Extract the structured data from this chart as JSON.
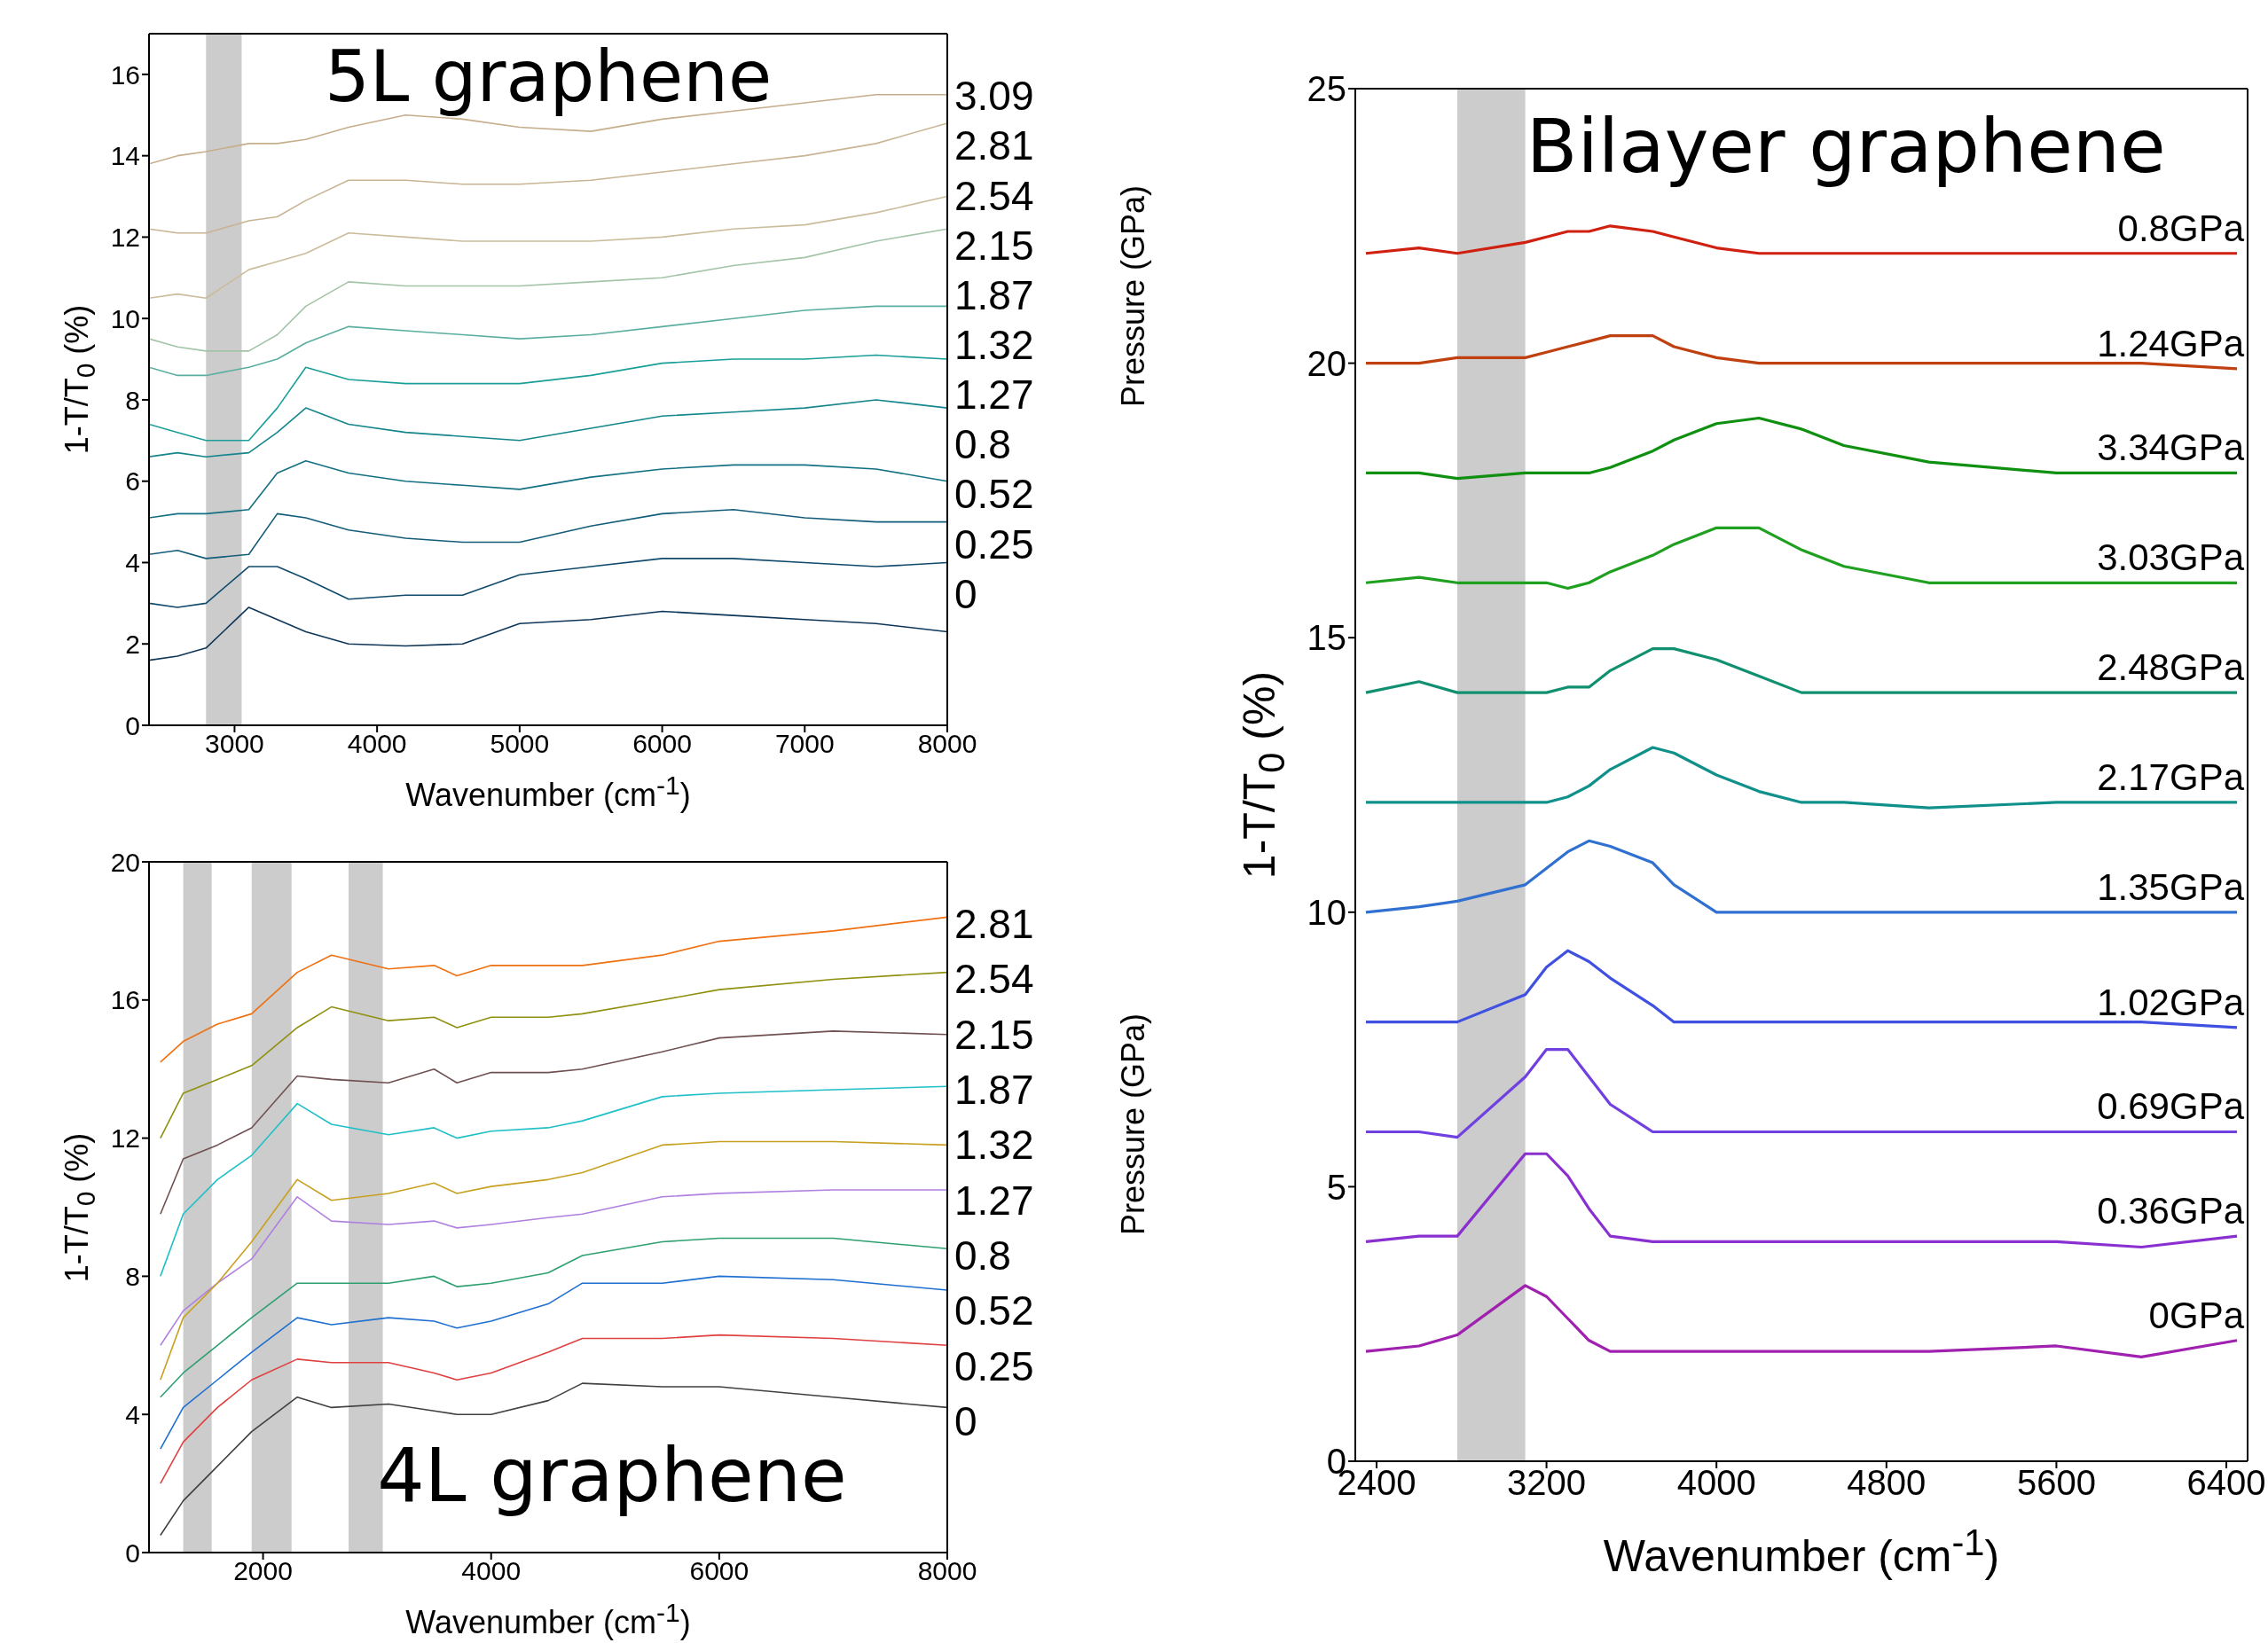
{
  "chart_data": [
    {
      "type": "line",
      "title": "5L graphene",
      "xlabel": "Wavenumber (cm$^{-1}$)",
      "ylabel": "1-T/T$_{0}$ (%)",
      "y2label": "Pressure (GPa)",
      "x": [
        2400,
        2600,
        2800,
        3100,
        3300,
        3500,
        3800,
        4200,
        4600,
        5000,
        5500,
        6000,
        6500,
        7000,
        7500,
        8000
      ],
      "xlim": [
        2400,
        8000
      ],
      "xticks": [
        3000,
        4000,
        5000,
        6000,
        7000,
        8000
      ],
      "ylim": [
        0,
        17
      ],
      "yticks": [
        0,
        2,
        4,
        6,
        8,
        10,
        12,
        14,
        16
      ],
      "grid": false,
      "marker": "none",
      "line_style": "solid",
      "bands": [
        {
          "axis": "x",
          "from": 2800,
          "to": 3050,
          "color": "#cccccc"
        }
      ],
      "series": [
        {
          "name": "0",
          "color": "#0d3658",
          "values": [
            1.6,
            1.7,
            1.9,
            2.9,
            2.6,
            2.3,
            2.0,
            1.95,
            2.0,
            2.5,
            2.6,
            2.8,
            2.7,
            2.6,
            2.5,
            2.3
          ]
        },
        {
          "name": "0.25",
          "color": "#0f4a6c",
          "values": [
            3.0,
            2.9,
            3.0,
            3.9,
            3.9,
            3.6,
            3.1,
            3.2,
            3.2,
            3.7,
            3.9,
            4.1,
            4.1,
            4.0,
            3.9,
            4.0
          ]
        },
        {
          "name": "0.52",
          "color": "#135c7a",
          "values": [
            4.2,
            4.3,
            4.1,
            4.2,
            5.2,
            5.1,
            4.8,
            4.6,
            4.5,
            4.5,
            4.9,
            5.2,
            5.3,
            5.1,
            5.0,
            5.0
          ]
        },
        {
          "name": "0.8",
          "color": "#137083",
          "values": [
            5.1,
            5.2,
            5.2,
            5.3,
            6.2,
            6.5,
            6.2,
            6.0,
            5.9,
            5.8,
            6.1,
            6.3,
            6.4,
            6.4,
            6.3,
            6.0
          ]
        },
        {
          "name": "1.27",
          "color": "#15868c",
          "values": [
            6.6,
            6.7,
            6.6,
            6.7,
            7.2,
            7.8,
            7.4,
            7.2,
            7.1,
            7.0,
            7.3,
            7.6,
            7.7,
            7.8,
            8.0,
            7.8
          ]
        },
        {
          "name": "1.32",
          "color": "#1a9e98",
          "values": [
            7.4,
            7.2,
            7.0,
            7.0,
            7.8,
            8.8,
            8.5,
            8.4,
            8.4,
            8.4,
            8.6,
            8.9,
            9.0,
            9.0,
            9.1,
            9.0
          ]
        },
        {
          "name": "1.87",
          "color": "#5aaea0",
          "values": [
            8.8,
            8.6,
            8.6,
            8.8,
            9.0,
            9.4,
            9.8,
            9.7,
            9.6,
            9.5,
            9.6,
            9.8,
            10.0,
            10.2,
            10.3,
            10.3
          ]
        },
        {
          "name": "2.15",
          "color": "#a3c4a8",
          "values": [
            9.5,
            9.3,
            9.2,
            9.2,
            9.6,
            10.3,
            10.9,
            10.8,
            10.8,
            10.8,
            10.9,
            11.0,
            11.3,
            11.5,
            11.9,
            12.2
          ]
        },
        {
          "name": "2.54",
          "color": "#cbbc9c",
          "values": [
            10.5,
            10.6,
            10.5,
            11.2,
            11.4,
            11.6,
            12.1,
            12.0,
            11.9,
            11.9,
            11.9,
            12.0,
            12.2,
            12.3,
            12.6,
            13.0
          ]
        },
        {
          "name": "2.81",
          "color": "#c9b494",
          "values": [
            12.2,
            12.1,
            12.1,
            12.4,
            12.5,
            12.9,
            13.4,
            13.4,
            13.3,
            13.3,
            13.4,
            13.6,
            13.8,
            14.0,
            14.3,
            14.8
          ]
        },
        {
          "name": "3.09",
          "color": "#c6ae8c",
          "values": [
            13.8,
            14.0,
            14.1,
            14.3,
            14.3,
            14.4,
            14.7,
            15.0,
            14.9,
            14.7,
            14.6,
            14.9,
            15.1,
            15.3,
            15.5,
            15.5
          ]
        }
      ]
    },
    {
      "type": "line",
      "title": "4L graphene",
      "xlabel": "Wavenumber (cm$^{-1}$)",
      "ylabel": "1-T/T$_{0}$ (%)",
      "y2label": "Pressure (GPa)",
      "x": [
        1100,
        1300,
        1600,
        1900,
        2300,
        2600,
        3100,
        3500,
        3700,
        4000,
        4500,
        4800,
        5500,
        6000,
        7000,
        8000
      ],
      "xlim": [
        1000,
        8000
      ],
      "xticks": [
        2000,
        4000,
        6000,
        8000
      ],
      "ylim": [
        0,
        20
      ],
      "yticks": [
        0,
        4,
        8,
        12,
        16,
        20
      ],
      "grid": false,
      "marker": "none",
      "line_style": "solid",
      "bands": [
        {
          "axis": "x",
          "from": 1300,
          "to": 1550,
          "color": "#cccccc"
        },
        {
          "axis": "x",
          "from": 1900,
          "to": 2250,
          "color": "#cccccc"
        },
        {
          "axis": "x",
          "from": 2750,
          "to": 3050,
          "color": "#cccccc"
        }
      ],
      "series": [
        {
          "name": "0",
          "color": "#404040",
          "values": [
            0.5,
            1.5,
            2.5,
            3.5,
            4.5,
            4.2,
            4.3,
            4.1,
            4.0,
            4.0,
            4.4,
            4.9,
            4.8,
            4.8,
            4.5,
            4.2
          ]
        },
        {
          "name": "0.25",
          "color": "#e04040",
          "values": [
            2.0,
            3.2,
            4.2,
            5.0,
            5.6,
            5.5,
            5.5,
            5.2,
            5.0,
            5.2,
            5.8,
            6.2,
            6.2,
            6.3,
            6.2,
            6.0
          ]
        },
        {
          "name": "0.52",
          "color": "#1f6fd0",
          "values": [
            3.0,
            4.2,
            5.0,
            5.8,
            6.8,
            6.6,
            6.8,
            6.7,
            6.5,
            6.7,
            7.2,
            7.8,
            7.8,
            8.0,
            7.9,
            7.6
          ]
        },
        {
          "name": "0.8",
          "color": "#2ea070",
          "values": [
            4.5,
            5.2,
            6.0,
            6.8,
            7.8,
            7.8,
            7.8,
            8.0,
            7.7,
            7.8,
            8.1,
            8.6,
            9.0,
            9.1,
            9.1,
            8.8
          ]
        },
        {
          "name": "1.27",
          "color": "#b080e0",
          "values": [
            6.0,
            7.0,
            7.8,
            8.5,
            10.3,
            9.6,
            9.5,
            9.6,
            9.4,
            9.5,
            9.7,
            9.8,
            10.3,
            10.4,
            10.5,
            10.5
          ]
        },
        {
          "name": "1.32",
          "color": "#c8a020",
          "values": [
            5.0,
            6.8,
            7.8,
            9.0,
            10.8,
            10.2,
            10.4,
            10.7,
            10.4,
            10.6,
            10.8,
            11.0,
            11.8,
            11.9,
            11.9,
            11.8
          ]
        },
        {
          "name": "1.87",
          "color": "#20c0c8",
          "values": [
            8.0,
            9.8,
            10.8,
            11.5,
            13.0,
            12.4,
            12.1,
            12.3,
            12.0,
            12.2,
            12.3,
            12.5,
            13.2,
            13.3,
            13.4,
            13.5
          ]
        },
        {
          "name": "2.15",
          "color": "#705050",
          "values": [
            9.8,
            11.4,
            11.8,
            12.3,
            13.8,
            13.7,
            13.6,
            14.0,
            13.6,
            13.9,
            13.9,
            14.0,
            14.5,
            14.9,
            15.1,
            15.0
          ]
        },
        {
          "name": "2.54",
          "color": "#909010",
          "values": [
            12.0,
            13.3,
            13.7,
            14.1,
            15.2,
            15.8,
            15.4,
            15.5,
            15.2,
            15.5,
            15.5,
            15.6,
            16.0,
            16.3,
            16.6,
            16.8
          ]
        },
        {
          "name": "2.81",
          "color": "#f07010",
          "values": [
            14.2,
            14.8,
            15.3,
            15.6,
            16.8,
            17.3,
            16.9,
            17.0,
            16.7,
            17.0,
            17.0,
            17.0,
            17.3,
            17.7,
            18.0,
            18.4
          ]
        }
      ]
    },
    {
      "type": "line",
      "title": "Bilayer graphene",
      "xlabel": "Wavenumber (cm$^{-1}$)",
      "ylabel": "1-T/T$_{0}$ (%)",
      "x": [
        2350,
        2600,
        2780,
        3100,
        3200,
        3300,
        3400,
        3500,
        3700,
        3800,
        4000,
        4200,
        4400,
        4600,
        5000,
        5600,
        6000,
        6450
      ],
      "xlim": [
        2300,
        6500
      ],
      "xticks": [
        2400,
        3200,
        4000,
        4800,
        5600,
        6400
      ],
      "ylim": [
        0,
        25
      ],
      "yticks": [
        0,
        5,
        10,
        15,
        20,
        25
      ],
      "grid": false,
      "marker": "none",
      "line_style": "solid",
      "bands": [
        {
          "axis": "x",
          "from": 2780,
          "to": 3100,
          "color": "#cccccc"
        }
      ],
      "series": [
        {
          "name": "0GPa",
          "color": "#a020b0",
          "values": [
            2.0,
            2.1,
            2.3,
            3.2,
            3.0,
            2.6,
            2.2,
            2.0,
            2.0,
            2.0,
            2.0,
            2.0,
            2.0,
            2.0,
            2.0,
            2.1,
            1.9,
            2.2
          ]
        },
        {
          "name": "0.36GPa",
          "color": "#8a30d0",
          "values": [
            4.0,
            4.1,
            4.1,
            5.6,
            5.6,
            5.2,
            4.6,
            4.1,
            4.0,
            4.0,
            4.0,
            4.0,
            4.0,
            4.0,
            4.0,
            4.0,
            3.9,
            4.1
          ]
        },
        {
          "name": "0.69GPa",
          "color": "#7040e0",
          "values": [
            6.0,
            6.0,
            5.9,
            7.0,
            7.5,
            7.5,
            7.0,
            6.5,
            6.0,
            6.0,
            6.0,
            6.0,
            6.0,
            6.0,
            6.0,
            6.0,
            6.0,
            6.0
          ]
        },
        {
          "name": "1.02GPa",
          "color": "#4050e0",
          "values": [
            8.0,
            8.0,
            8.0,
            8.5,
            9.0,
            9.3,
            9.1,
            8.8,
            8.3,
            8.0,
            8.0,
            8.0,
            8.0,
            8.0,
            8.0,
            8.0,
            8.0,
            7.9
          ]
        },
        {
          "name": "1.35GPa",
          "color": "#3070d0",
          "values": [
            10.0,
            10.1,
            10.2,
            10.5,
            10.8,
            11.1,
            11.3,
            11.2,
            10.9,
            10.5,
            10.0,
            10.0,
            10.0,
            10.0,
            10.0,
            10.0,
            10.0,
            10.0
          ]
        },
        {
          "name": "2.17GPa",
          "color": "#10908a",
          "values": [
            12.0,
            12.0,
            12.0,
            12.0,
            12.0,
            12.1,
            12.3,
            12.6,
            13.0,
            12.9,
            12.5,
            12.2,
            12.0,
            12.0,
            11.9,
            12.0,
            12.0,
            12.0
          ]
        },
        {
          "name": "2.48GPa",
          "color": "#109070",
          "values": [
            14.0,
            14.2,
            14.0,
            14.0,
            14.0,
            14.1,
            14.1,
            14.4,
            14.8,
            14.8,
            14.6,
            14.3,
            14.0,
            14.0,
            14.0,
            14.0,
            14.0,
            14.0
          ]
        },
        {
          "name": "3.03GPa",
          "color": "#20a020",
          "values": [
            16.0,
            16.1,
            16.0,
            16.0,
            16.0,
            15.9,
            16.0,
            16.2,
            16.5,
            16.7,
            17.0,
            17.0,
            16.6,
            16.3,
            16.0,
            16.0,
            16.0,
            16.0
          ]
        },
        {
          "name": "3.34GPa",
          "color": "#109010",
          "values": [
            18.0,
            18.0,
            17.9,
            18.0,
            18.0,
            18.0,
            18.0,
            18.1,
            18.4,
            18.6,
            18.9,
            19.0,
            18.8,
            18.5,
            18.2,
            18.0,
            18.0,
            18.0
          ]
        },
        {
          "name": "1.24GPa",
          "color": "#c04010",
          "values": [
            20.0,
            20.0,
            20.1,
            20.1,
            20.2,
            20.3,
            20.4,
            20.5,
            20.5,
            20.3,
            20.1,
            20.0,
            20.0,
            20.0,
            20.0,
            20.0,
            20.0,
            19.9
          ]
        },
        {
          "name": "0.8GPa",
          "color": "#d02010",
          "values": [
            22.0,
            22.1,
            22.0,
            22.2,
            22.3,
            22.4,
            22.4,
            22.5,
            22.4,
            22.3,
            22.1,
            22.0,
            22.0,
            22.0,
            22.0,
            22.0,
            22.0,
            22.0
          ]
        }
      ]
    }
  ]
}
